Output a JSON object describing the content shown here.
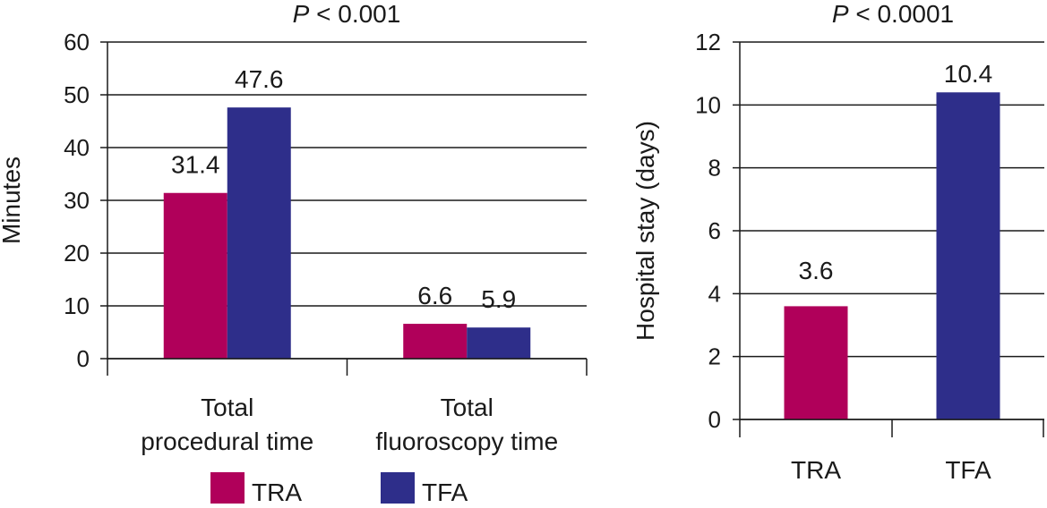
{
  "colors": {
    "TRA": "#b0005a",
    "TFA": "#2e2e8a"
  },
  "chart_data": [
    {
      "type": "bar",
      "title_italic": "P",
      "title_rest": " < 0.001",
      "ylabel": "Minutes",
      "ylim": [
        0,
        60
      ],
      "yticks": [
        "0",
        "10",
        "20",
        "30",
        "40",
        "50",
        "60"
      ],
      "categories": [
        "Total procedural time",
        "Total fluoroscopy time"
      ],
      "category_lines": [
        [
          "Total",
          "procedural time"
        ],
        [
          "Total",
          "fluoroscopy time"
        ]
      ],
      "series": [
        {
          "name": "TRA",
          "values": [
            31.4,
            6.6
          ],
          "labels": [
            "31.4",
            "6.6"
          ]
        },
        {
          "name": "TFA",
          "values": [
            47.6,
            5.9
          ],
          "labels": [
            "47.6",
            "5.9"
          ]
        }
      ],
      "legend": {
        "position": "bottom",
        "items": [
          "TRA",
          "TFA"
        ]
      },
      "grid": true
    },
    {
      "type": "bar",
      "title_italic": "P",
      "title_rest": " < 0.0001",
      "ylabel": "Hospital stay (days)",
      "ylim": [
        0,
        12
      ],
      "yticks": [
        "0",
        "2",
        "4",
        "6",
        "8",
        "10",
        "12"
      ],
      "categories": [
        "TRA",
        "TFA"
      ],
      "values": [
        3.6,
        10.4
      ],
      "labels": [
        "3.6",
        "10.4"
      ],
      "grid": true
    }
  ]
}
